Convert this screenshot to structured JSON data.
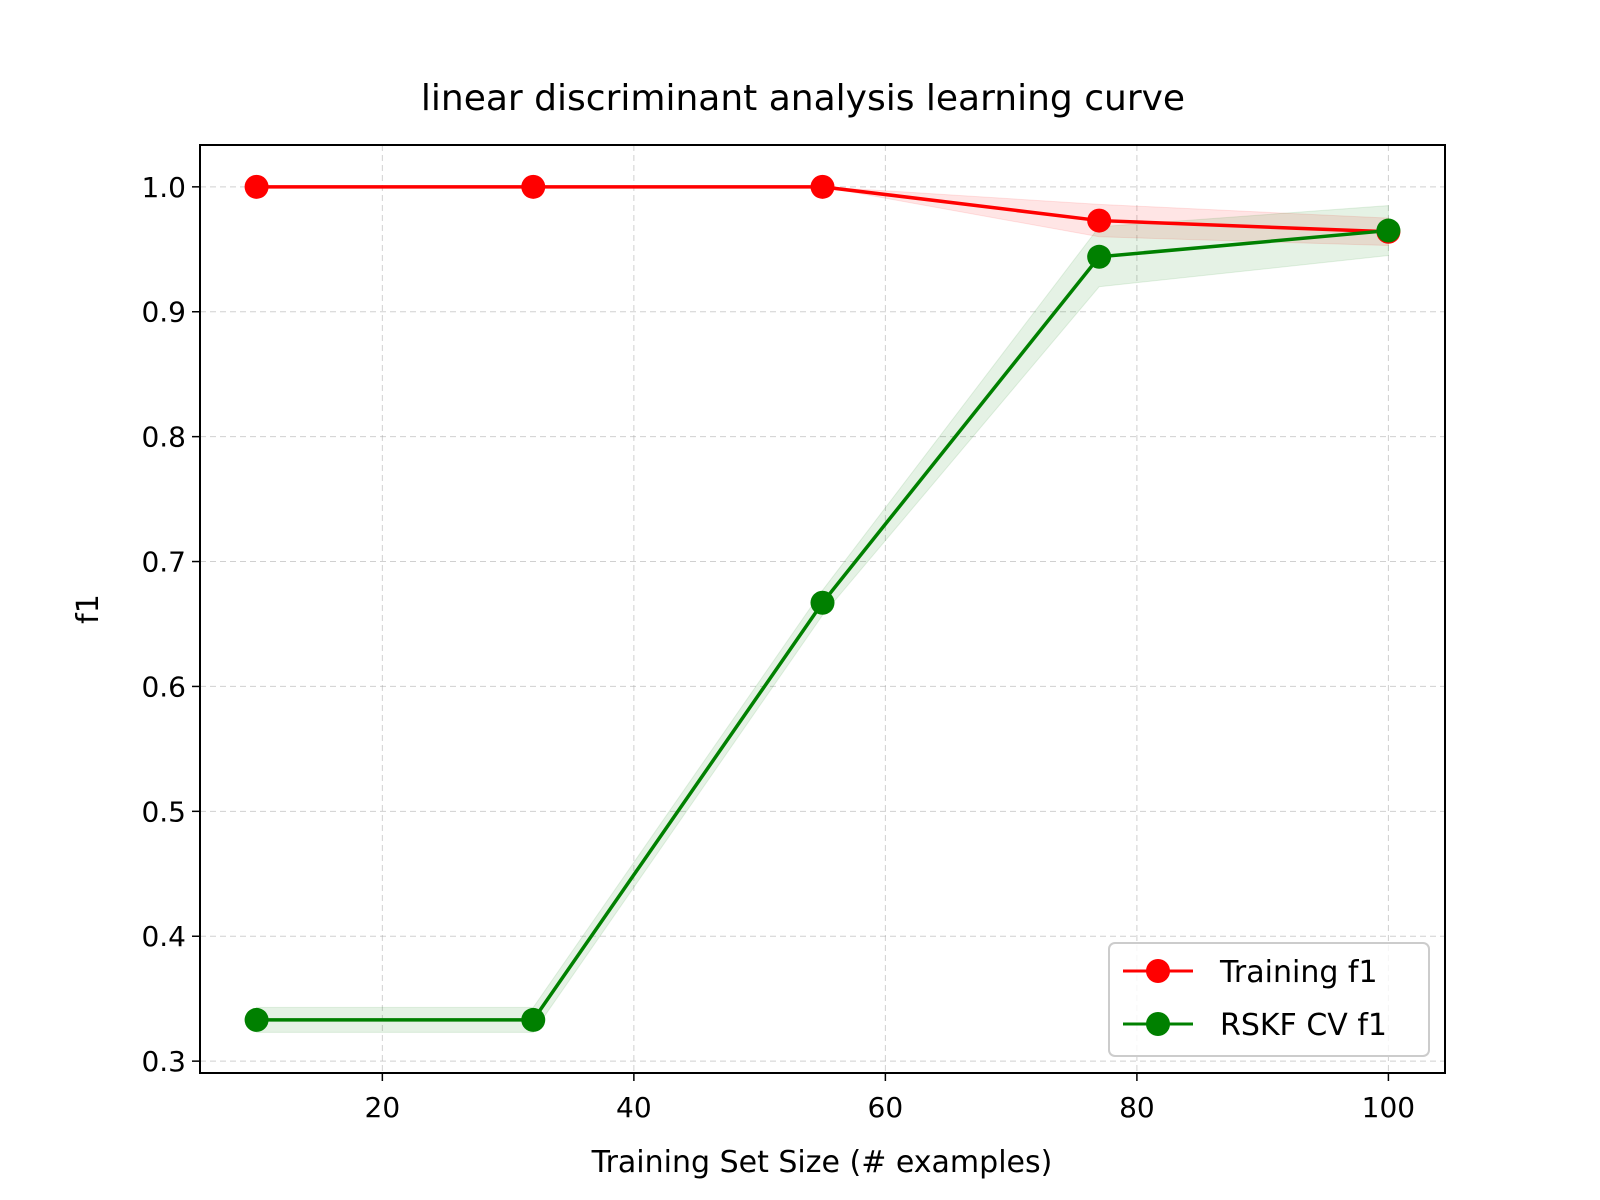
{
  "chart_data": {
    "type": "line",
    "title": "linear discriminant analysis learning curve",
    "xlabel": "Training Set Size (# examples)",
    "ylabel": "f1",
    "xlim": [
      5.5,
      104.5
    ],
    "ylim": [
      0.2905,
      1.0335
    ],
    "xticks": [
      20,
      40,
      60,
      80,
      100
    ],
    "xtick_labels": [
      "20",
      "40",
      "60",
      "80",
      "100"
    ],
    "yticks": [
      0.3,
      0.4,
      0.5,
      0.6,
      0.7,
      0.8,
      0.9,
      1.0
    ],
    "ytick_labels": [
      "0.3",
      "0.4",
      "0.5",
      "0.6",
      "0.7",
      "0.8",
      "0.9",
      "1.0"
    ],
    "grid": true,
    "legend_position": "bottom-right",
    "x": [
      10,
      32,
      55,
      77,
      100
    ],
    "series": [
      {
        "name": "Training f1",
        "color": "#ff0000",
        "values": [
          1.0,
          1.0,
          1.0,
          0.973,
          0.964
        ],
        "band_lower": [
          1.0,
          1.0,
          1.0,
          0.96,
          0.953
        ],
        "band_upper": [
          1.0,
          1.0,
          1.0,
          0.986,
          0.975
        ]
      },
      {
        "name": "RSKF CV f1",
        "color": "#008000",
        "values": [
          0.333,
          0.333,
          0.667,
          0.944,
          0.965
        ],
        "band_lower": [
          0.323,
          0.323,
          0.657,
          0.92,
          0.945
        ],
        "band_upper": [
          0.343,
          0.343,
          0.677,
          0.968,
          0.985
        ]
      }
    ]
  }
}
